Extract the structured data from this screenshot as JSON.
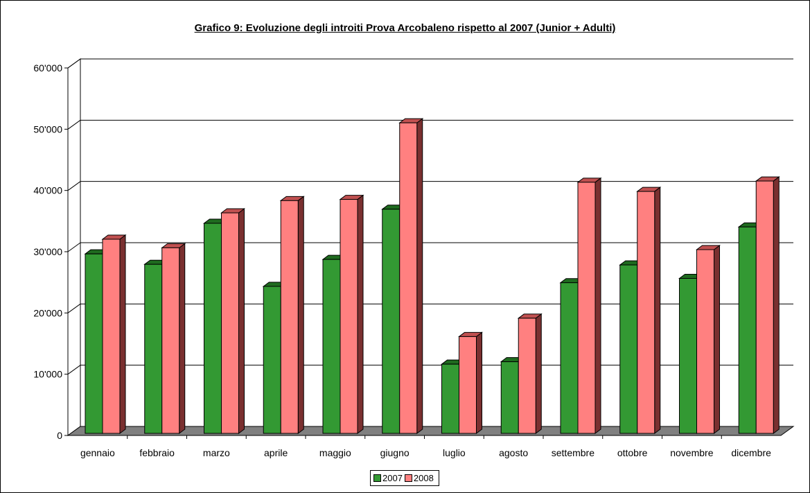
{
  "chart_data": {
    "type": "bar",
    "title": "Grafico 9: Evoluzione degli introiti Prova Arcobaleno rispetto al 2007 (Junior + Adulti)",
    "categories": [
      "gennaio",
      "febbraio",
      "marzo",
      "aprile",
      "maggio",
      "giugno",
      "luglio",
      "agosto",
      "settembre",
      "ottobre",
      "novembre",
      "dicembre"
    ],
    "series": [
      {
        "name": "2007",
        "color": "#339933",
        "values": [
          29300,
          27600,
          34300,
          24000,
          28400,
          36600,
          11300,
          11700,
          24600,
          27500,
          25300,
          33700
        ]
      },
      {
        "name": "2008",
        "color": "#ff8080",
        "values": [
          31700,
          30300,
          36000,
          38000,
          38200,
          50700,
          15800,
          18800,
          41000,
          39500,
          30000,
          41200
        ]
      }
    ],
    "ylim": [
      0,
      60000
    ],
    "yticks": [
      0,
      10000,
      20000,
      30000,
      40000,
      50000,
      60000
    ],
    "ytick_labels": [
      "0",
      "10'000",
      "20'000",
      "30'000",
      "40'000",
      "50'000",
      "60'000"
    ],
    "grid": true,
    "legend_position": "bottom"
  }
}
